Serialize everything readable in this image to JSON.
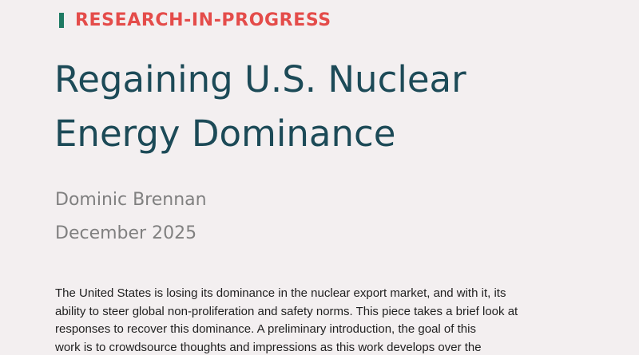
{
  "label": "RESEARCH-IN-PROGRESS",
  "title": {
    "line1": "Regaining U.S. Nuclear",
    "line2": "Energy Dominance"
  },
  "author": "Dominic Brennan",
  "date": "December 2025",
  "abstract": {
    "line1": "The United States is losing its dominance in the nuclear export market, and with it, its",
    "line2": "ability to steer global non-proliferation and safety norms. This piece takes a brief look at",
    "line3": "responses to recover this dominance. A preliminary introduction, the goal of this",
    "line4": "work is to crowdsource thoughts and impressions as this work develops over the"
  },
  "colors": {
    "accent_bar": "#1e7a63",
    "label": "#e44c4a",
    "title": "#1c4a57",
    "meta": "#808080",
    "background": "#f3eff0"
  }
}
